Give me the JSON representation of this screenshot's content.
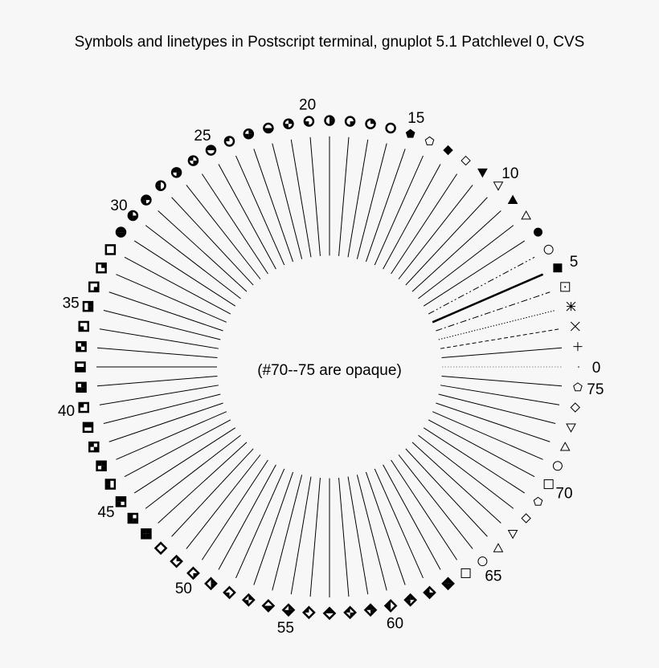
{
  "chart_data": {
    "type": "symbol-demo",
    "title": "Symbols and linetypes in Postscript terminal, gnuplot 5.1 Patchlevel 0, CVS",
    "note": "(#70--75 are opaque)",
    "point_count": 76,
    "labels": [
      0,
      5,
      10,
      15,
      20,
      25,
      30,
      35,
      40,
      45,
      50,
      55,
      60,
      65,
      70,
      75
    ],
    "linetypes": [
      {
        "index": 0,
        "style": "dotted",
        "color": "#888888"
      },
      {
        "index": 1,
        "style": "solid"
      },
      {
        "index": 2,
        "style": "dashed"
      },
      {
        "index": 3,
        "style": "dotted"
      },
      {
        "index": 4,
        "style": "dash-dot"
      },
      {
        "index": 5,
        "style": "solid-thick"
      },
      {
        "index": 6,
        "style": "dash-dot-dot"
      }
    ],
    "symbols": [
      "dot",
      "plus",
      "cross",
      "star",
      "box-dotted",
      "box-filled",
      "circle",
      "circle-filled",
      "triangle-up",
      "triangle-up-filled",
      "triangle-down",
      "triangle-down-filled",
      "diamond",
      "diamond-filled",
      "pentagon",
      "pentagon-filled",
      "circle-quarter",
      "circle-quarter",
      "circle-quarter",
      "circle-quarter",
      "circle-quarter",
      "circle-quarter",
      "circle-quarter",
      "circle-quarter",
      "circle-quarter",
      "circle-quarter",
      "circle-quarter",
      "circle-quarter",
      "circle-quarter",
      "circle-quarter",
      "circle-quarter",
      "circle-quarter",
      "box-quarter",
      "box-quarter",
      "box-quarter",
      "box-quarter",
      "box-quarter",
      "box-quarter",
      "box-quarter",
      "box-quarter",
      "box-quarter",
      "box-quarter",
      "box-quarter",
      "box-quarter",
      "box-quarter",
      "box-quarter",
      "box-quarter",
      "box-quarter",
      "diamond-quarter",
      "diamond-quarter",
      "diamond-quarter",
      "diamond-quarter",
      "diamond-quarter",
      "diamond-quarter",
      "diamond-quarter",
      "diamond-quarter",
      "diamond-quarter",
      "diamond-quarter",
      "diamond-quarter",
      "diamond-quarter",
      "diamond-quarter",
      "diamond-quarter",
      "diamond-quarter",
      "diamond-quarter",
      "box-open",
      "circle-open",
      "triangle-up-open",
      "triangle-down-open",
      "diamond-open",
      "pentagon-open",
      "box-opaque",
      "circle-opaque",
      "triangle-up-opaque",
      "triangle-down-opaque",
      "diamond-opaque",
      "pentagon-opaque"
    ]
  }
}
